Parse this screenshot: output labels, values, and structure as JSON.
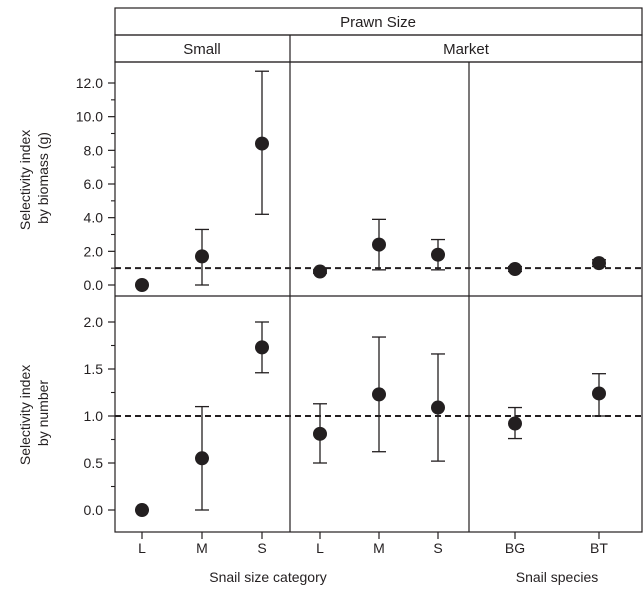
{
  "chart_data": {
    "type": "scatter",
    "plot_style": "faceted point estimates with error bars",
    "header": "Prawn Size",
    "columns": [
      {
        "key": "small",
        "label": "Small"
      },
      {
        "key": "market",
        "label": "Market"
      }
    ],
    "x_categories": [
      "L",
      "M",
      "S",
      "L",
      "M",
      "S",
      "BG",
      "BT"
    ],
    "x_axis_labels": [
      "Snail size category",
      "Snail species"
    ],
    "reference_line": {
      "y": 1.0,
      "style": "dashed"
    },
    "rows": [
      {
        "key": "biomass",
        "ylabel_lines": [
          "Selectivity index",
          "by biomass (g)"
        ],
        "ylim": [
          -0.7,
          13.2
        ],
        "yticks": [
          0.0,
          2.0,
          4.0,
          6.0,
          8.0,
          10.0,
          12.0
        ],
        "yticklabels": [
          "0.0",
          "2.0",
          "4.0",
          "6.0",
          "8.0",
          "10.0",
          "12.0"
        ],
        "points": [
          {
            "x": "L",
            "group": "Small",
            "y": 0.0,
            "lo": 0.0,
            "hi": 0.0
          },
          {
            "x": "M",
            "group": "Small",
            "y": 1.7,
            "lo": 0.0,
            "hi": 3.3
          },
          {
            "x": "S",
            "group": "Small",
            "y": 8.4,
            "lo": 4.2,
            "hi": 12.7
          },
          {
            "x": "L",
            "group": "Market",
            "y": 0.8,
            "lo": 0.7,
            "hi": 0.9
          },
          {
            "x": "M",
            "group": "Market",
            "y": 2.4,
            "lo": 0.9,
            "hi": 3.9
          },
          {
            "x": "S",
            "group": "Market",
            "y": 1.8,
            "lo": 0.9,
            "hi": 2.7
          },
          {
            "x": "BG",
            "group": "Market",
            "y": 0.95,
            "lo": 0.8,
            "hi": 1.1
          },
          {
            "x": "BT",
            "group": "Market",
            "y": 1.3,
            "lo": 1.1,
            "hi": 1.5
          }
        ]
      },
      {
        "key": "number",
        "ylabel_lines": [
          "Selectivity index",
          "by number"
        ],
        "ylim": [
          -0.15,
          2.15
        ],
        "yticks": [
          0.0,
          0.5,
          1.0,
          1.5,
          2.0
        ],
        "yticklabels": [
          "0.0",
          "0.5",
          "1.0",
          "1.5",
          "2.0"
        ],
        "points": [
          {
            "x": "L",
            "group": "Small",
            "y": 0.0,
            "lo": 0.0,
            "hi": 0.0
          },
          {
            "x": "M",
            "group": "Small",
            "y": 0.55,
            "lo": 0.0,
            "hi": 1.1
          },
          {
            "x": "S",
            "group": "Small",
            "y": 1.73,
            "lo": 1.46,
            "hi": 2.0
          },
          {
            "x": "L",
            "group": "Market",
            "y": 0.81,
            "lo": 0.5,
            "hi": 1.13
          },
          {
            "x": "M",
            "group": "Market",
            "y": 1.23,
            "lo": 0.62,
            "hi": 1.84
          },
          {
            "x": "S",
            "group": "Market",
            "y": 1.09,
            "lo": 0.52,
            "hi": 1.66
          },
          {
            "x": "BG",
            "group": "Market",
            "y": 0.92,
            "lo": 0.76,
            "hi": 1.09
          },
          {
            "x": "BT",
            "group": "Market",
            "y": 1.24,
            "lo": 1.0,
            "hi": 1.45
          }
        ]
      }
    ],
    "colors": {
      "ink": "#231f20",
      "background": "#ffffff"
    }
  }
}
